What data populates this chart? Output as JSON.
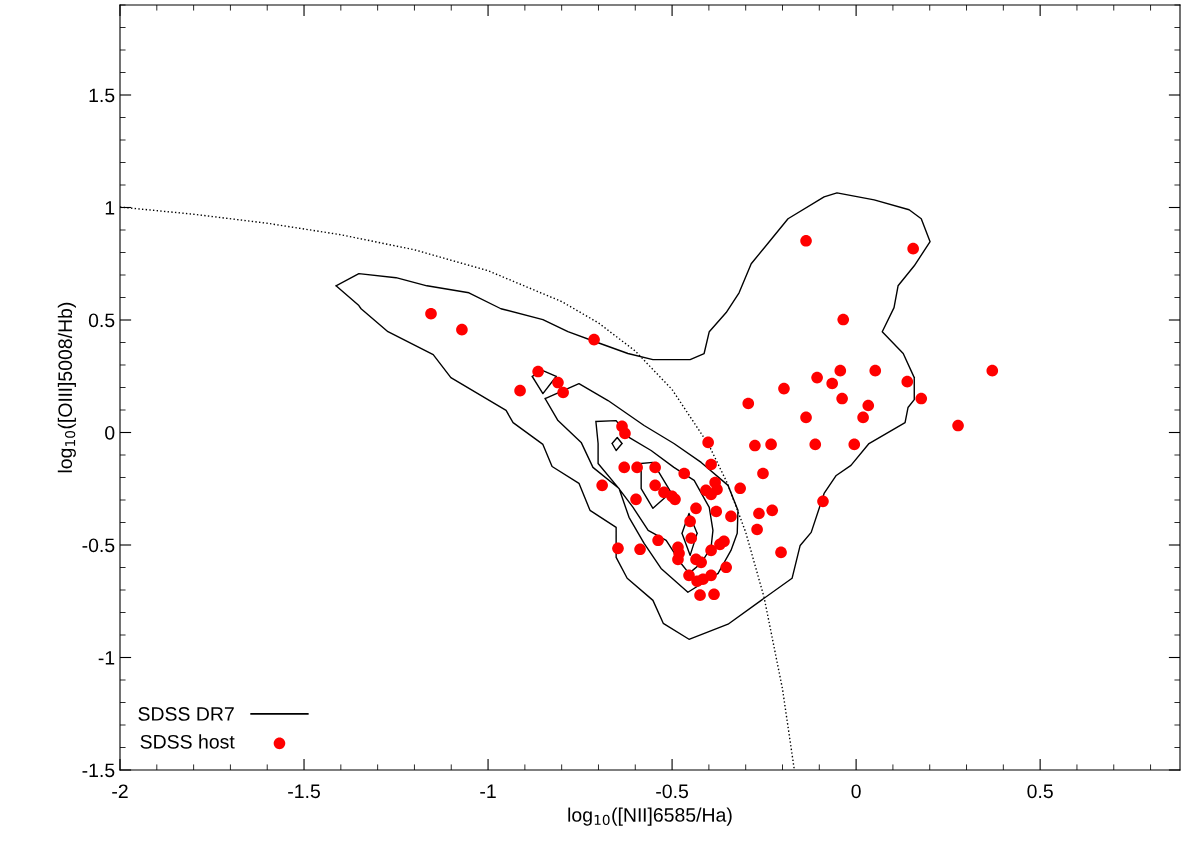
{
  "chart_data": {
    "type": "line",
    "xlabel": "log$_{10}$([NII]6585/Ha)",
    "ylabel": "log$_{10}$([OIII]5008/Hb)",
    "xlim": [
      -2,
      0.88
    ],
    "ylim": [
      -1.5,
      1.9
    ],
    "xticks": [
      -2,
      -1.5,
      -1,
      -0.5,
      0,
      0.5
    ],
    "yticks": [
      -1.5,
      -1,
      -0.5,
      0,
      0.5,
      1,
      1.5
    ],
    "legend": "bottom left",
    "series": [
      {
        "color": "#000000",
        "line_style": "dotted",
        "marker": "none",
        "x": [
          -2,
          -1.8,
          -1.6,
          -1.4,
          -1.2,
          -1.0,
          -0.8,
          -0.7,
          -0.6,
          -0.5,
          -0.4,
          -0.35,
          -0.3,
          -0.25,
          -0.2,
          -0.168
        ],
        "values": [
          1.002,
          0.97,
          0.93,
          0.879,
          0.812,
          0.719,
          0.582,
          0.487,
          0.362,
          0.191,
          -0.056,
          -0.225,
          -0.443,
          -0.733,
          -1.14,
          -1.498
        ]
      },
      {
        "name": "SDSS DR7",
        "color": "#000000",
        "line_style": "solid",
        "marker": "none",
        "x": [
          -1.413,
          -1.351,
          -1.25,
          -1.166,
          -1.052,
          -0.965,
          -0.851,
          -0.783,
          -0.701,
          -0.62,
          -0.552,
          -0.451,
          -0.413,
          -0.399,
          -0.353,
          -0.318,
          -0.285,
          -0.236,
          -0.185,
          -0.087,
          -0.052,
          0.049,
          0.144,
          0.177,
          0.201,
          0.158,
          0.114,
          0.103,
          0.071,
          0.128,
          0.158,
          null,
          0.158,
          0.158,
          0.141,
          0.133,
          0.035,
          -0.014,
          -0.054,
          -0.087,
          -0.122,
          -0.152,
          -0.174,
          -0.258,
          -0.348,
          -0.454,
          -0.524,
          -0.552,
          -0.622,
          -0.652,
          -0.652,
          -0.723,
          -0.753,
          -0.826,
          -0.851,
          -0.932,
          -0.951,
          -1.101,
          -1.149,
          -1.272,
          -1.345,
          -1.351,
          -1.413,
          null,
          -0.88,
          -0.851,
          -0.815,
          null,
          -0.815,
          -0.851,
          -0.88,
          null,
          -0.845,
          -0.81,
          -0.747,
          -0.715,
          -0.644,
          -0.617,
          -0.576,
          -0.53,
          -0.457,
          -0.375,
          null,
          -0.375,
          -0.34,
          -0.323,
          -0.321,
          -0.348,
          -0.421,
          -0.495,
          -0.576,
          -0.674,
          -0.753,
          -0.845,
          null,
          -0.707,
          -0.652,
          -0.617,
          -0.557,
          -0.495,
          -0.44,
          -0.399,
          -0.389,
          -0.394,
          -0.421,
          null,
          -0.421,
          -0.454,
          -0.476,
          -0.516,
          -0.565,
          -0.606,
          -0.647,
          -0.701,
          -0.701,
          -0.707,
          null,
          -0.663,
          -0.649,
          -0.636,
          null,
          -0.636,
          -0.652,
          -0.663,
          null,
          -0.584,
          -0.552,
          -0.503,
          null,
          -0.503,
          -0.552,
          -0.584,
          -0.584,
          null,
          -0.473,
          -0.454,
          -0.432,
          null,
          -0.432,
          -0.451,
          -0.473
        ],
        "values": [
          0.652,
          0.706,
          0.688,
          0.652,
          0.621,
          0.55,
          0.502,
          0.448,
          0.399,
          0.351,
          0.324,
          0.324,
          0.351,
          0.448,
          0.533,
          0.621,
          0.75,
          0.848,
          0.95,
          1.047,
          1.065,
          1.034,
          0.99,
          0.95,
          0.848,
          0.741,
          0.652,
          0.555,
          0.448,
          0.351,
          0.244,
          null,
          0.244,
          0.146,
          0.111,
          0.044,
          -0.049,
          -0.146,
          -0.191,
          -0.271,
          -0.444,
          -0.502,
          -0.648,
          -0.746,
          -0.852,
          -0.919,
          -0.848,
          -0.746,
          -0.648,
          -0.555,
          -0.422,
          -0.346,
          -0.226,
          -0.151,
          -0.053,
          0.044,
          0.098,
          0.244,
          0.346,
          0.448,
          0.55,
          0.564,
          0.652,
          null,
          0.249,
          0.173,
          0.249,
          null,
          0.249,
          0.275,
          0.249,
          null,
          0.151,
          0.053,
          -0.044,
          -0.155,
          -0.249,
          -0.377,
          -0.493,
          -0.604,
          -0.71,
          -0.626,
          null,
          -0.626,
          -0.524,
          -0.448,
          -0.346,
          -0.235,
          -0.133,
          -0.049,
          0.031,
          0.142,
          0.217,
          0.151,
          null,
          0.049,
          0.053,
          -0.022,
          -0.08,
          -0.155,
          -0.213,
          -0.333,
          -0.435,
          -0.51,
          -0.581,
          null,
          -0.581,
          -0.626,
          -0.581,
          -0.479,
          -0.435,
          -0.333,
          -0.244,
          -0.138,
          -0.049,
          0.049,
          null,
          -0.049,
          -0.022,
          -0.049,
          null,
          -0.049,
          -0.08,
          -0.049,
          null,
          -0.138,
          -0.133,
          -0.266,
          null,
          -0.266,
          -0.337,
          -0.249,
          -0.138,
          null,
          -0.448,
          -0.36,
          -0.448,
          null,
          -0.448,
          -0.546,
          -0.448
        ]
      },
      {
        "name": "SDSS host",
        "type": "scatter",
        "color": "#ff0000",
        "marker": "circle",
        "x": [
          -1.155,
          -1.071,
          -0.712,
          -0.864,
          -0.913,
          -0.81,
          -0.796,
          -0.136,
          0.155,
          -0.035,
          -0.043,
          0.052,
          0.37,
          -0.106,
          -0.065,
          -0.196,
          0.139,
          -0.038,
          0.177,
          -0.293,
          0.033,
          0.019,
          -0.136,
          0.277,
          -0.402,
          -0.275,
          -0.231,
          -0.111,
          -0.005,
          -0.394,
          -0.253,
          -0.467,
          -0.315,
          -0.264,
          -0.228,
          -0.269,
          -0.09,
          -0.204,
          -0.353,
          -0.424,
          -0.386,
          -0.34,
          -0.38,
          -0.636,
          -0.628,
          -0.63,
          -0.595,
          -0.546,
          -0.383,
          -0.408,
          -0.394,
          -0.378,
          -0.546,
          -0.522,
          -0.5,
          -0.492,
          -0.69,
          -0.598,
          -0.435,
          -0.451,
          -0.448,
          -0.538,
          -0.647,
          -0.587,
          -0.484,
          -0.481,
          -0.484,
          -0.394,
          -0.37,
          -0.359,
          -0.435,
          -0.421,
          -0.454,
          -0.432,
          -0.416,
          -0.394
        ],
        "values": [
          0.528,
          0.457,
          0.413,
          0.271,
          0.186,
          0.222,
          0.178,
          0.852,
          0.817,
          0.502,
          0.275,
          0.275,
          0.275,
          0.244,
          0.218,
          0.195,
          0.226,
          0.151,
          0.151,
          0.129,
          0.12,
          0.067,
          0.067,
          0.031,
          -0.044,
          -0.058,
          -0.053,
          -0.053,
          -0.053,
          -0.142,
          -0.182,
          -0.182,
          -0.248,
          -0.36,
          -0.346,
          -0.431,
          -0.306,
          -0.533,
          -0.599,
          -0.723,
          -0.719,
          -0.373,
          -0.351,
          0.027,
          -0.004,
          -0.155,
          -0.155,
          -0.155,
          -0.222,
          -0.257,
          -0.275,
          -0.253,
          -0.235,
          -0.266,
          -0.284,
          -0.297,
          -0.235,
          -0.297,
          -0.337,
          -0.395,
          -0.47,
          -0.479,
          -0.515,
          -0.519,
          -0.51,
          -0.537,
          -0.564,
          -0.524,
          -0.497,
          -0.484,
          -0.564,
          -0.577,
          -0.635,
          -0.661,
          -0.652,
          -0.635
        ]
      }
    ]
  }
}
